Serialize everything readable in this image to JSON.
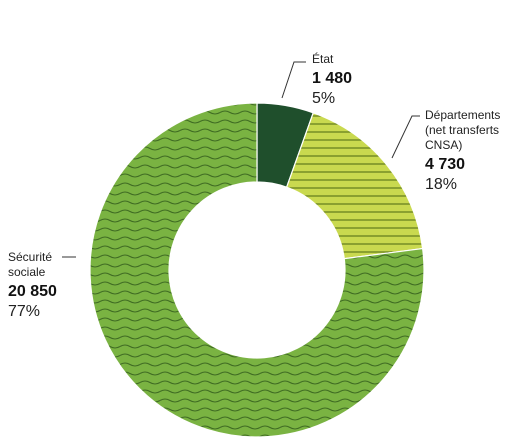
{
  "chart_data": {
    "type": "pie",
    "variant": "donut",
    "categories": [
      "État",
      "Départements (net transferts CNSA)",
      "Sécurité sociale"
    ],
    "values": [
      1480,
      4730,
      20850
    ],
    "value_labels": [
      "1 480",
      "4 730",
      "20 850"
    ],
    "percent_labels": [
      "5%",
      "18%",
      "77%"
    ],
    "percents": [
      5,
      18,
      77
    ],
    "colors": [
      "#1f4f2c",
      "#c9d94f",
      "#7ab342"
    ],
    "patterns": [
      "none",
      "horizontal-lines",
      "wavy-lines"
    ]
  },
  "labels": {
    "etat": {
      "name": "État",
      "value": "1 480",
      "pct": "5%"
    },
    "departements": {
      "name_line1": "Départements",
      "name_line2": "(net transferts",
      "name_line3": "CNSA)",
      "value": "4 730",
      "pct": "18%"
    },
    "secu": {
      "name_line1": "Sécurité",
      "name_line2": "sociale",
      "value": "20 850",
      "pct": "77%"
    }
  }
}
